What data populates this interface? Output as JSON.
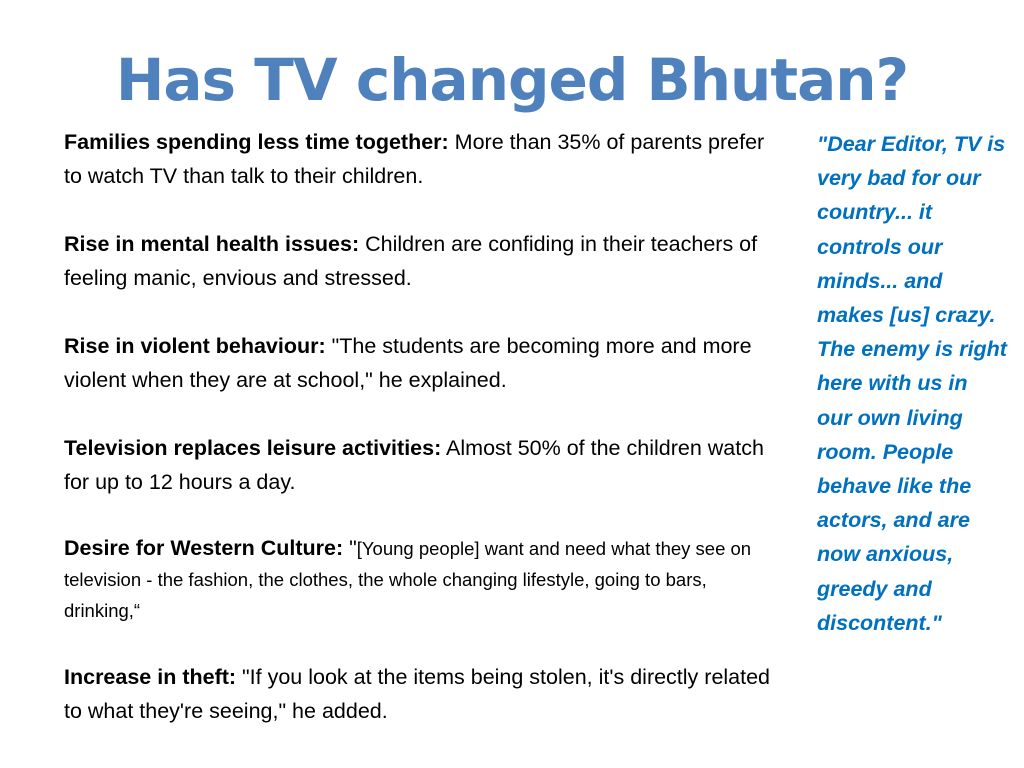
{
  "slide": {
    "title": "Has TV changed Bhutan?",
    "points": [
      {
        "heading": "Families spending less time together:",
        "text": " More than 35% of parents prefer to watch TV than talk to their children."
      },
      {
        "heading": "Rise in mental health issues:",
        "text": "  Children are confiding in their teachers of feeling manic, envious and stressed."
      },
      {
        "heading": "Rise in violent behaviour:",
        "text": " \"The students are becoming more and more violent when they are at school,\" he explained."
      },
      {
        "heading": "Television replaces leisure activities:",
        "text": " Almost 50% of the children watch for up to 12 hours a day."
      },
      {
        "heading": "Desire for Western Culture:",
        "text_prefix": " \"",
        "text": "[Young people] want and need what they see on television - the fashion, the clothes, the whole changing lifestyle, going to bars, drinking,“"
      },
      {
        "heading": "Increase in theft:",
        "text": " \"If you look at the items being stolen, it's directly related to what they're seeing,\" he added."
      }
    ],
    "sidebar_quote": "\"Dear Editor, TV is very bad for our country... it controls our minds... and makes [us] crazy. The enemy is right here with us in our own living room. People behave like the actors, and are now anxious, greedy and discontent.\""
  },
  "colors": {
    "title": "#4F81BD",
    "quote": "#0070C0",
    "body_text": "#000000",
    "background": "#FFFFFF"
  }
}
